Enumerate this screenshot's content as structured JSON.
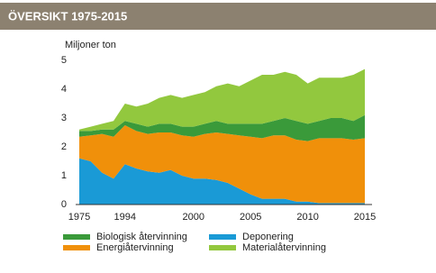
{
  "chart_data": {
    "type": "stacked_area",
    "title": "ÖVERSIKT 1975-2015",
    "y_label": "Miljoner ton",
    "categories": [
      "1975",
      null,
      null,
      null,
      "1994",
      null,
      null,
      null,
      null,
      null,
      "2000",
      null,
      null,
      null,
      null,
      "2005",
      null,
      null,
      null,
      null,
      "2010",
      null,
      null,
      null,
      null,
      "2015"
    ],
    "series": [
      {
        "name": "Deponering",
        "color": "#1a9ad6",
        "values": [
          1.6,
          1.5,
          1.1,
          0.9,
          1.4,
          1.25,
          1.15,
          1.1,
          1.2,
          1.0,
          0.9,
          0.9,
          0.85,
          0.75,
          0.55,
          0.35,
          0.2,
          0.2,
          0.2,
          0.1,
          0.1,
          0.05,
          0.05,
          0.05,
          0.05,
          0.05
        ]
      },
      {
        "name": "Energiåtervinning",
        "color": "#f0900a",
        "values": [
          0.75,
          0.9,
          1.35,
          1.45,
          1.35,
          1.3,
          1.3,
          1.4,
          1.3,
          1.4,
          1.45,
          1.55,
          1.65,
          1.7,
          1.85,
          2.0,
          2.1,
          2.2,
          2.2,
          2.15,
          2.1,
          2.25,
          2.25,
          2.25,
          2.2,
          2.25
        ]
      },
      {
        "name": "Biologisk återvinning",
        "color": "#3a9a3a",
        "values": [
          0.2,
          0.15,
          0.15,
          0.25,
          0.15,
          0.25,
          0.25,
          0.3,
          0.3,
          0.3,
          0.35,
          0.35,
          0.4,
          0.35,
          0.4,
          0.45,
          0.5,
          0.5,
          0.6,
          0.65,
          0.6,
          0.6,
          0.7,
          0.7,
          0.65,
          0.8
        ]
      },
      {
        "name": "Materialåtervinning",
        "color": "#92c83e",
        "values": [
          0.05,
          0.15,
          0.2,
          0.3,
          0.6,
          0.6,
          0.8,
          0.9,
          1.0,
          1.0,
          1.1,
          1.1,
          1.2,
          1.4,
          1.3,
          1.5,
          1.7,
          1.6,
          1.6,
          1.6,
          1.4,
          1.5,
          1.4,
          1.4,
          1.6,
          1.6
        ]
      }
    ],
    "ylim": [
      0,
      5
    ],
    "yticks": [
      0,
      1,
      2,
      3,
      4,
      5
    ]
  }
}
